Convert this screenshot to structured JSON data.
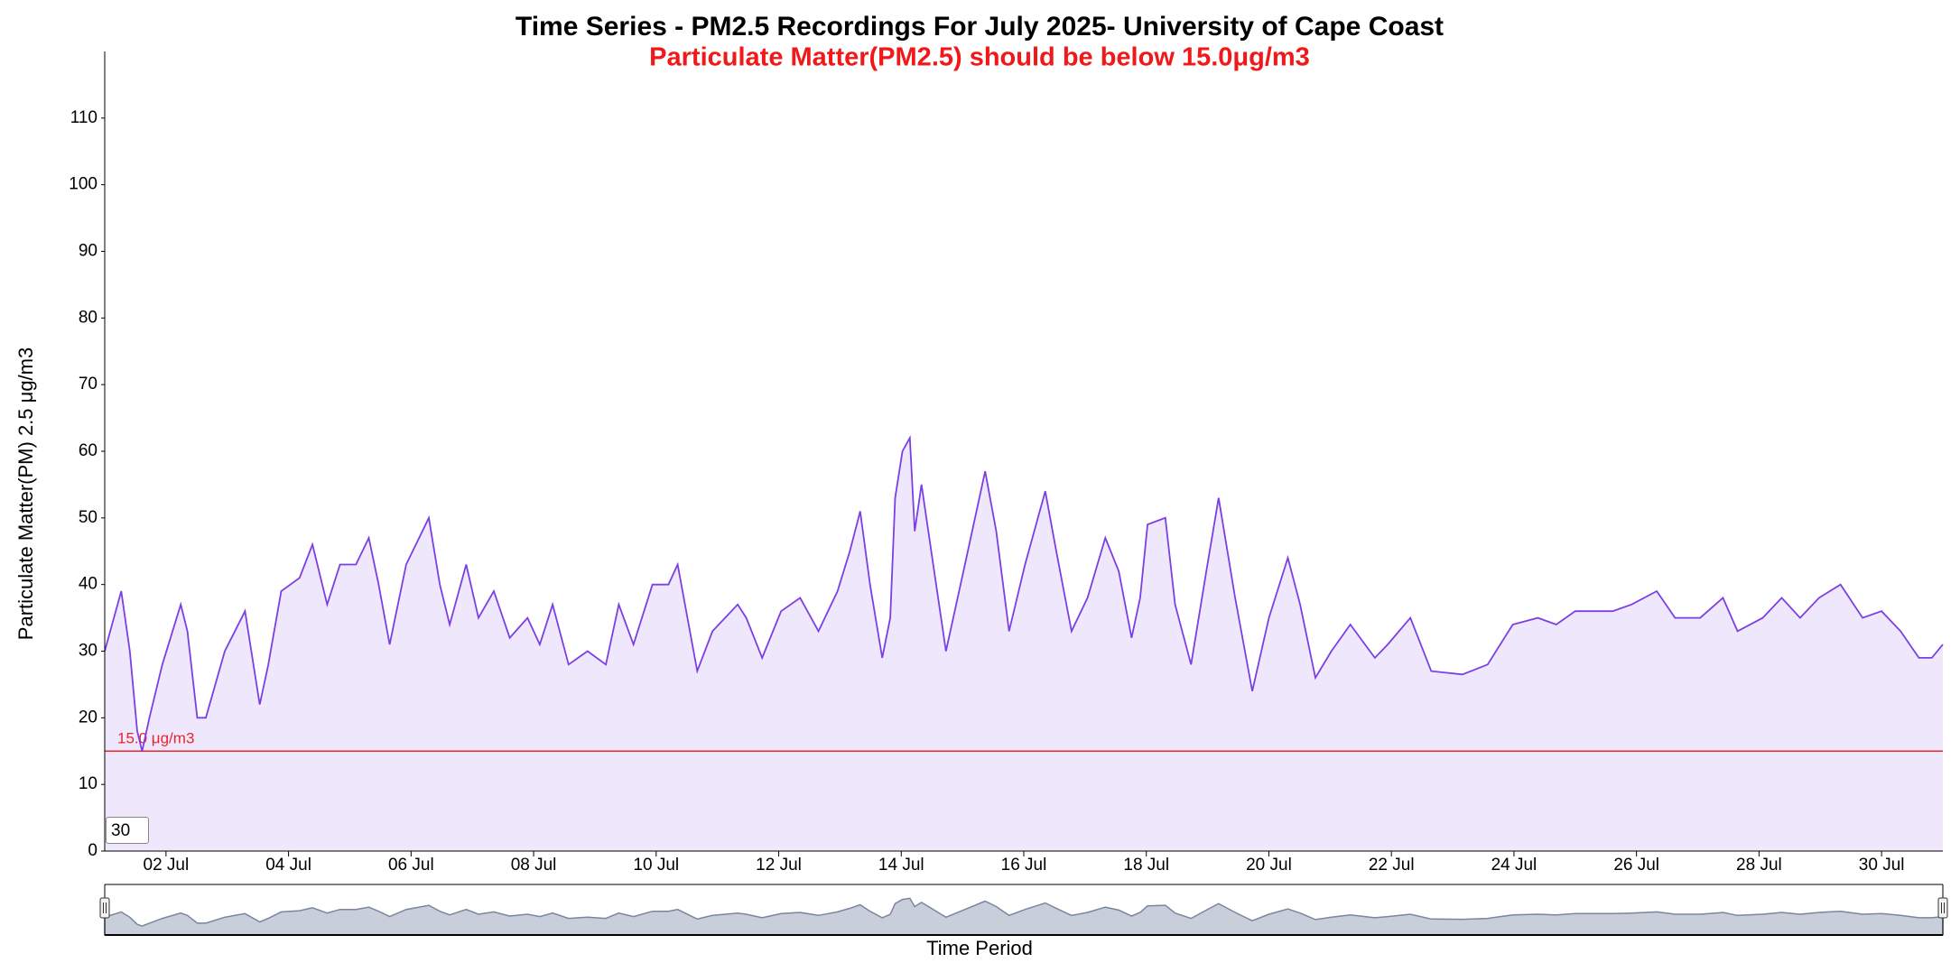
{
  "chart_data": {
    "type": "line",
    "title": "Time Series - PM2.5 Recordings For July 2025- University of Cape Coast",
    "subtitle": "Particulate Matter(PM2.5) should be below 15.0μg/m3",
    "y_label": "Particulate Matter(PM) 2.5 μg/m3",
    "x_label": "Time Period",
    "color": "#7b3fe4",
    "fill": "#efe8fd",
    "x": [
      1.0,
      1.27,
      1.41,
      1.53,
      1.61,
      1.73,
      1.94,
      2.24,
      2.35,
      2.51,
      2.65,
      2.96,
      3.29,
      3.53,
      3.67,
      3.88,
      4.18,
      4.39,
      4.63,
      4.84,
      5.1,
      5.31,
      5.47,
      5.65,
      5.92,
      6.29,
      6.47,
      6.63,
      6.9,
      7.1,
      7.35,
      7.61,
      7.9,
      8.1,
      8.31,
      8.57,
      8.88,
      9.18,
      9.39,
      9.63,
      9.94,
      10.2,
      10.35,
      10.67,
      10.92,
      11.33,
      11.47,
      11.73,
      12.04,
      12.35,
      12.65,
      12.96,
      13.16,
      13.33,
      13.49,
      13.69,
      13.82,
      13.9,
      14.02,
      14.14,
      14.22,
      14.33,
      14.49,
      14.73,
      15.04,
      15.37,
      15.55,
      15.76,
      16.02,
      16.35,
      16.53,
      16.78,
      17.04,
      17.33,
      17.55,
      17.76,
      17.9,
      18.02,
      18.31,
      18.47,
      18.73,
      18.98,
      19.18,
      19.45,
      19.73,
      20.0,
      20.31,
      20.51,
      20.76,
      21.02,
      21.33,
      21.57,
      21.73,
      21.94,
      22.31,
      22.65,
      23.16,
      23.57,
      23.98,
      24.39,
      24.69,
      25.0,
      25.61,
      25.92,
      26.33,
      26.63,
      27.04,
      27.41,
      27.65,
      28.06,
      28.37,
      28.67,
      28.98,
      29.33,
      29.69,
      30.0,
      30.31,
      30.61,
      30.82,
      31.0
    ],
    "values": [
      30,
      39,
      30,
      18,
      15,
      20,
      28,
      37,
      33,
      20,
      20,
      30,
      36,
      22,
      28,
      39,
      41,
      46,
      37,
      43,
      43,
      47,
      40,
      31,
      43,
      50,
      40,
      34,
      43,
      35,
      39,
      32,
      35,
      31,
      37,
      28,
      30,
      28,
      37,
      31,
      40,
      40,
      43,
      27,
      33,
      37,
      35,
      29,
      36,
      38,
      33,
      39,
      45,
      51,
      40,
      29,
      35,
      53,
      60,
      62,
      48,
      55,
      45,
      30,
      43,
      57,
      48,
      33,
      43,
      54,
      45,
      33,
      38,
      47,
      42,
      32,
      38,
      49,
      50,
      37,
      28,
      42,
      53,
      38,
      24,
      35,
      44,
      37,
      26,
      30,
      34,
      31,
      29,
      31,
      35,
      27,
      26.5,
      28,
      34,
      35,
      34,
      36,
      36,
      37,
      39,
      35,
      35,
      38,
      33,
      35,
      38,
      35,
      38,
      40,
      35,
      36,
      33,
      29,
      29,
      31
    ],
    "xlim": [
      1,
      31
    ],
    "xticks": [
      {
        "value": 2,
        "label": "02 Jul"
      },
      {
        "value": 4,
        "label": "04 Jul"
      },
      {
        "value": 6,
        "label": "06 Jul"
      },
      {
        "value": 8,
        "label": "08 Jul"
      },
      {
        "value": 10,
        "label": "10 Jul"
      },
      {
        "value": 12,
        "label": "12 Jul"
      },
      {
        "value": 14,
        "label": "14 Jul"
      },
      {
        "value": 16,
        "label": "16 Jul"
      },
      {
        "value": 18,
        "label": "18 Jul"
      },
      {
        "value": 20,
        "label": "20 Jul"
      },
      {
        "value": 22,
        "label": "22 Jul"
      },
      {
        "value": 24,
        "label": "24 Jul"
      },
      {
        "value": 26,
        "label": "26 Jul"
      },
      {
        "value": 28,
        "label": "28 Jul"
      },
      {
        "value": 30,
        "label": "30 Jul"
      }
    ],
    "ylim": [
      0,
      120
    ],
    "yticks": [
      0,
      10,
      20,
      30,
      40,
      50,
      60,
      70,
      80,
      90,
      100,
      110
    ],
    "threshold": {
      "value": 15,
      "label": "15.0 μg/m3",
      "color": "#e8262a"
    },
    "navigator": true
  },
  "controls": {
    "period_input": "30"
  }
}
